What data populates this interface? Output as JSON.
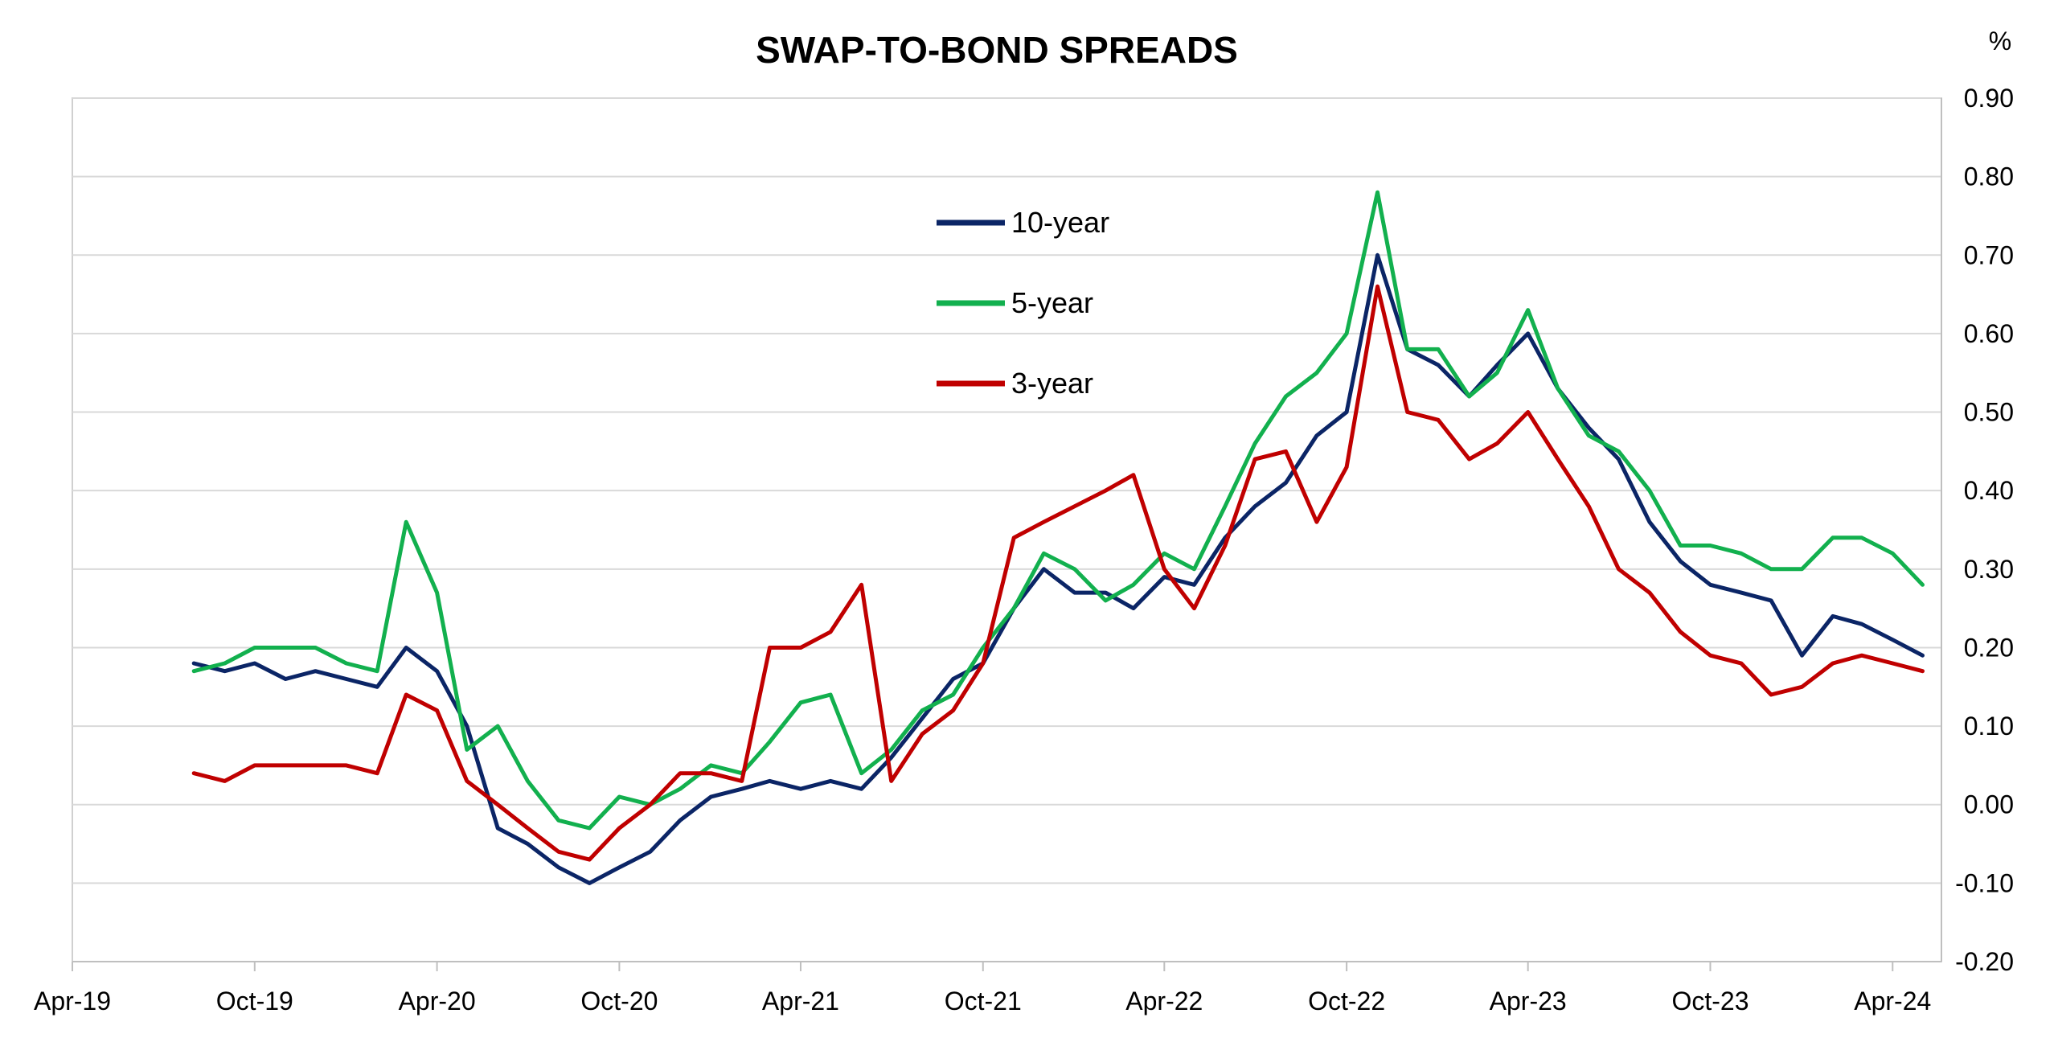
{
  "chart_data": {
    "type": "line",
    "title": "SWAP-TO-BOND SPREADS",
    "unit_label": "%",
    "xlabel": "",
    "ylabel": "",
    "ylim": [
      -0.2,
      0.9
    ],
    "y_ticks": [
      "0.90",
      "0.80",
      "0.70",
      "0.60",
      "0.50",
      "0.40",
      "0.30",
      "0.20",
      "0.10",
      "0.00",
      "-0.10",
      "-0.20"
    ],
    "y_axis_position": "right",
    "x_ticks": [
      "Apr-19",
      "Oct-19",
      "Apr-20",
      "Oct-20",
      "Apr-21",
      "Oct-21",
      "Apr-22",
      "Oct-22",
      "Apr-23",
      "Oct-23",
      "Apr-24"
    ],
    "grid": "horizontal",
    "legend_position": "upper-center",
    "series": [
      {
        "name": "10-year",
        "color": "#0b2566",
        "points": [
          [
            "2019-08-01",
            0.18
          ],
          [
            "2019-09-01",
            0.17
          ],
          [
            "2019-10-01",
            0.18
          ],
          [
            "2019-11-01",
            0.16
          ],
          [
            "2019-12-01",
            0.17
          ],
          [
            "2020-01-01",
            0.16
          ],
          [
            "2020-02-01",
            0.15
          ],
          [
            "2020-03-01",
            0.2
          ],
          [
            "2020-04-01",
            0.17
          ],
          [
            "2020-05-01",
            0.1
          ],
          [
            "2020-06-01",
            -0.03
          ],
          [
            "2020-07-01",
            -0.05
          ],
          [
            "2020-08-01",
            -0.08
          ],
          [
            "2020-09-01",
            -0.1
          ],
          [
            "2020-10-01",
            -0.08
          ],
          [
            "2020-11-01",
            -0.06
          ],
          [
            "2020-12-01",
            -0.02
          ],
          [
            "2021-01-01",
            0.01
          ],
          [
            "2021-02-01",
            0.02
          ],
          [
            "2021-03-01",
            0.03
          ],
          [
            "2021-04-01",
            0.02
          ],
          [
            "2021-05-01",
            0.03
          ],
          [
            "2021-06-01",
            0.02
          ],
          [
            "2021-07-01",
            0.06
          ],
          [
            "2021-08-01",
            0.11
          ],
          [
            "2021-09-01",
            0.16
          ],
          [
            "2021-10-01",
            0.18
          ],
          [
            "2021-11-01",
            0.25
          ],
          [
            "2021-12-01",
            0.3
          ],
          [
            "2022-01-01",
            0.27
          ],
          [
            "2022-02-01",
            0.27
          ],
          [
            "2022-03-01",
            0.25
          ],
          [
            "2022-04-01",
            0.29
          ],
          [
            "2022-05-01",
            0.28
          ],
          [
            "2022-06-01",
            0.34
          ],
          [
            "2022-07-01",
            0.38
          ],
          [
            "2022-08-01",
            0.41
          ],
          [
            "2022-09-01",
            0.47
          ],
          [
            "2022-10-01",
            0.5
          ],
          [
            "2022-11-01",
            0.7
          ],
          [
            "2022-12-01",
            0.58
          ],
          [
            "2023-01-01",
            0.56
          ],
          [
            "2023-02-01",
            0.52
          ],
          [
            "2023-03-01",
            0.56
          ],
          [
            "2023-04-01",
            0.6
          ],
          [
            "2023-05-01",
            0.53
          ],
          [
            "2023-06-01",
            0.48
          ],
          [
            "2023-07-01",
            0.44
          ],
          [
            "2023-08-01",
            0.36
          ],
          [
            "2023-09-01",
            0.31
          ],
          [
            "2023-10-01",
            0.28
          ],
          [
            "2023-11-01",
            0.27
          ],
          [
            "2023-12-01",
            0.26
          ],
          [
            "2024-01-01",
            0.19
          ],
          [
            "2024-02-01",
            0.24
          ],
          [
            "2024-03-01",
            0.23
          ],
          [
            "2024-04-01",
            0.21
          ],
          [
            "2024-05-01",
            0.19
          ]
        ]
      },
      {
        "name": "5-year",
        "color": "#12b04e",
        "points": [
          [
            "2019-08-01",
            0.17
          ],
          [
            "2019-09-01",
            0.18
          ],
          [
            "2019-10-01",
            0.2
          ],
          [
            "2019-11-01",
            0.2
          ],
          [
            "2019-12-01",
            0.2
          ],
          [
            "2020-01-01",
            0.18
          ],
          [
            "2020-02-01",
            0.17
          ],
          [
            "2020-03-01",
            0.36
          ],
          [
            "2020-04-01",
            0.27
          ],
          [
            "2020-05-01",
            0.07
          ],
          [
            "2020-06-01",
            0.1
          ],
          [
            "2020-07-01",
            0.03
          ],
          [
            "2020-08-01",
            -0.02
          ],
          [
            "2020-09-01",
            -0.03
          ],
          [
            "2020-10-01",
            0.01
          ],
          [
            "2020-11-01",
            0.0
          ],
          [
            "2020-12-01",
            0.02
          ],
          [
            "2021-01-01",
            0.05
          ],
          [
            "2021-02-01",
            0.04
          ],
          [
            "2021-03-01",
            0.08
          ],
          [
            "2021-04-01",
            0.13
          ],
          [
            "2021-05-01",
            0.14
          ],
          [
            "2021-06-01",
            0.04
          ],
          [
            "2021-07-01",
            0.07
          ],
          [
            "2021-08-01",
            0.12
          ],
          [
            "2021-09-01",
            0.14
          ],
          [
            "2021-10-01",
            0.2
          ],
          [
            "2021-11-01",
            0.25
          ],
          [
            "2021-12-01",
            0.32
          ],
          [
            "2022-01-01",
            0.3
          ],
          [
            "2022-02-01",
            0.26
          ],
          [
            "2022-03-01",
            0.28
          ],
          [
            "2022-04-01",
            0.32
          ],
          [
            "2022-05-01",
            0.3
          ],
          [
            "2022-06-01",
            0.38
          ],
          [
            "2022-07-01",
            0.46
          ],
          [
            "2022-08-01",
            0.52
          ],
          [
            "2022-09-01",
            0.55
          ],
          [
            "2022-10-01",
            0.6
          ],
          [
            "2022-11-01",
            0.78
          ],
          [
            "2022-12-01",
            0.58
          ],
          [
            "2023-01-01",
            0.58
          ],
          [
            "2023-02-01",
            0.52
          ],
          [
            "2023-03-01",
            0.55
          ],
          [
            "2023-04-01",
            0.63
          ],
          [
            "2023-05-01",
            0.53
          ],
          [
            "2023-06-01",
            0.47
          ],
          [
            "2023-07-01",
            0.45
          ],
          [
            "2023-08-01",
            0.4
          ],
          [
            "2023-09-01",
            0.33
          ],
          [
            "2023-10-01",
            0.33
          ],
          [
            "2023-11-01",
            0.32
          ],
          [
            "2023-12-01",
            0.3
          ],
          [
            "2024-01-01",
            0.3
          ],
          [
            "2024-02-01",
            0.34
          ],
          [
            "2024-03-01",
            0.34
          ],
          [
            "2024-04-01",
            0.32
          ],
          [
            "2024-05-01",
            0.28
          ]
        ]
      },
      {
        "name": "3-year",
        "color": "#c00000",
        "points": [
          [
            "2019-08-01",
            0.04
          ],
          [
            "2019-09-01",
            0.03
          ],
          [
            "2019-10-01",
            0.05
          ],
          [
            "2019-11-01",
            0.05
          ],
          [
            "2019-12-01",
            0.05
          ],
          [
            "2020-01-01",
            0.05
          ],
          [
            "2020-02-01",
            0.04
          ],
          [
            "2020-03-01",
            0.14
          ],
          [
            "2020-04-01",
            0.12
          ],
          [
            "2020-05-01",
            0.03
          ],
          [
            "2020-06-01",
            0.0
          ],
          [
            "2020-07-01",
            -0.03
          ],
          [
            "2020-08-01",
            -0.06
          ],
          [
            "2020-09-01",
            -0.07
          ],
          [
            "2020-10-01",
            -0.03
          ],
          [
            "2020-11-01",
            0.0
          ],
          [
            "2020-12-01",
            0.04
          ],
          [
            "2021-01-01",
            0.04
          ],
          [
            "2021-02-01",
            0.03
          ],
          [
            "2021-03-01",
            0.2
          ],
          [
            "2021-04-01",
            0.2
          ],
          [
            "2021-05-01",
            0.22
          ],
          [
            "2021-06-01",
            0.28
          ],
          [
            "2021-07-01",
            0.03
          ],
          [
            "2021-08-01",
            0.09
          ],
          [
            "2021-09-01",
            0.12
          ],
          [
            "2021-10-01",
            0.18
          ],
          [
            "2021-11-01",
            0.34
          ],
          [
            "2021-12-01",
            0.36
          ],
          [
            "2022-01-01",
            0.38
          ],
          [
            "2022-02-01",
            0.4
          ],
          [
            "2022-03-01",
            0.42
          ],
          [
            "2022-04-01",
            0.3
          ],
          [
            "2022-05-01",
            0.25
          ],
          [
            "2022-06-01",
            0.33
          ],
          [
            "2022-07-01",
            0.44
          ],
          [
            "2022-08-01",
            0.45
          ],
          [
            "2022-09-01",
            0.36
          ],
          [
            "2022-10-01",
            0.43
          ],
          [
            "2022-11-01",
            0.66
          ],
          [
            "2022-12-01",
            0.5
          ],
          [
            "2023-01-01",
            0.49
          ],
          [
            "2023-02-01",
            0.44
          ],
          [
            "2023-03-01",
            0.46
          ],
          [
            "2023-04-01",
            0.5
          ],
          [
            "2023-05-01",
            0.44
          ],
          [
            "2023-06-01",
            0.38
          ],
          [
            "2023-07-01",
            0.3
          ],
          [
            "2023-08-01",
            0.27
          ],
          [
            "2023-09-01",
            0.22
          ],
          [
            "2023-10-01",
            0.19
          ],
          [
            "2023-11-01",
            0.18
          ],
          [
            "2023-12-01",
            0.14
          ],
          [
            "2024-01-01",
            0.15
          ],
          [
            "2024-02-01",
            0.18
          ],
          [
            "2024-03-01",
            0.19
          ],
          [
            "2024-04-01",
            0.18
          ],
          [
            "2024-05-01",
            0.17
          ]
        ]
      }
    ]
  }
}
